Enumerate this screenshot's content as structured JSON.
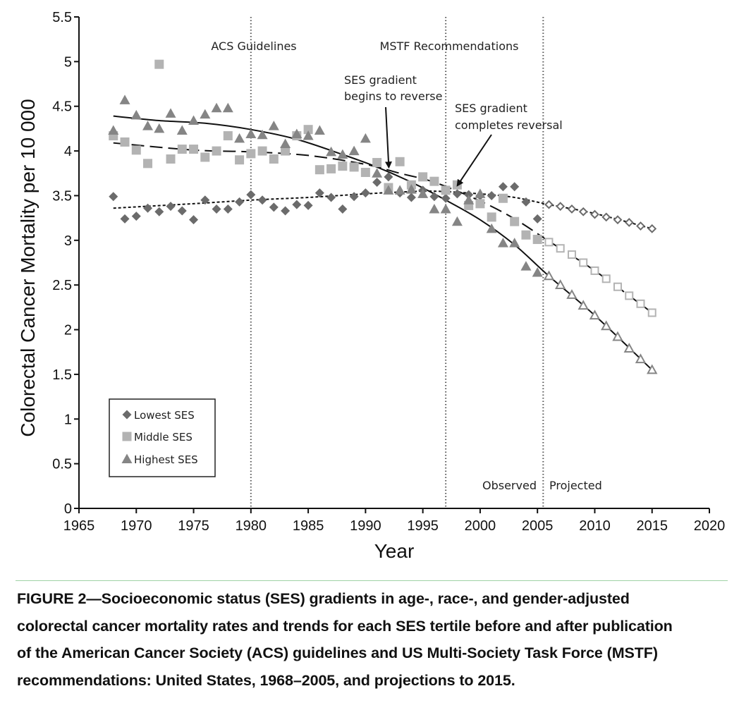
{
  "chart_data": {
    "type": "scatter",
    "xlabel": "Year",
    "ylabel": "Colorectal Cancer Mortality per 10 000",
    "xlim": [
      1965,
      2020
    ],
    "ylim": [
      0,
      5.5
    ],
    "xticks": [
      "1965",
      "1970",
      "1975",
      "1980",
      "1985",
      "1990",
      "1995",
      "2000",
      "2005",
      "2010",
      "2015",
      "2020"
    ],
    "yticks": [
      "0",
      "0.5",
      "1",
      "1.5",
      "2",
      "2.5",
      "3",
      "3.5",
      "4",
      "4.5",
      "5",
      "5.5"
    ],
    "grid": false,
    "legend_position": "bottom-left",
    "series": [
      {
        "name": "Lowest SES",
        "marker": "diamond",
        "color": "#6b6b6b",
        "observed": {
          "x": [
            1968,
            1969,
            1970,
            1971,
            1972,
            1973,
            1974,
            1975,
            1976,
            1977,
            1978,
            1979,
            1980,
            1981,
            1982,
            1983,
            1984,
            1985,
            1986,
            1987,
            1988,
            1989,
            1990,
            1991,
            1992,
            1993,
            1994,
            1995,
            1996,
            1997,
            1998,
            1999,
            2000,
            2001,
            2002,
            2003,
            2004,
            2005
          ],
          "y": [
            3.49,
            3.24,
            3.27,
            3.36,
            3.32,
            3.38,
            3.33,
            3.23,
            3.45,
            3.35,
            3.35,
            3.43,
            3.51,
            3.45,
            3.37,
            3.33,
            3.4,
            3.39,
            3.53,
            3.48,
            3.35,
            3.49,
            3.53,
            3.65,
            3.71,
            3.53,
            3.48,
            3.56,
            3.49,
            3.47,
            3.52,
            3.51,
            3.5,
            3.5,
            3.6,
            3.6,
            3.43,
            3.24
          ]
        },
        "projected": {
          "x": [
            2006,
            2007,
            2008,
            2009,
            2010,
            2011,
            2012,
            2013,
            2014,
            2015
          ],
          "y": [
            3.4,
            3.38,
            3.35,
            3.32,
            3.29,
            3.26,
            3.23,
            3.2,
            3.16,
            3.13
          ]
        },
        "trend": {
          "style": "dotted",
          "x": [
            1968,
            1975,
            1980,
            1985,
            1990,
            1993,
            1996,
            2000,
            2003,
            2006,
            2010,
            2015
          ],
          "y": [
            3.36,
            3.41,
            3.45,
            3.48,
            3.52,
            3.54,
            3.55,
            3.52,
            3.48,
            3.4,
            3.3,
            3.13
          ]
        }
      },
      {
        "name": "Middle SES",
        "marker": "square",
        "color": "#b3b3b3",
        "observed": {
          "x": [
            1968,
            1969,
            1970,
            1971,
            1972,
            1973,
            1974,
            1975,
            1976,
            1977,
            1978,
            1979,
            1980,
            1981,
            1982,
            1983,
            1984,
            1985,
            1986,
            1987,
            1988,
            1989,
            1990,
            1991,
            1992,
            1993,
            1994,
            1995,
            1996,
            1997,
            1998,
            1999,
            2000,
            2001,
            2002,
            2003,
            2004,
            2005
          ],
          "y": [
            4.17,
            4.1,
            4.01,
            3.86,
            4.97,
            3.91,
            4.02,
            4.02,
            3.93,
            4.0,
            4.17,
            3.9,
            3.97,
            4.0,
            3.91,
            4.0,
            4.17,
            4.24,
            3.79,
            3.8,
            3.83,
            3.82,
            3.76,
            3.87,
            3.59,
            3.88,
            3.62,
            3.71,
            3.66,
            3.56,
            3.62,
            3.39,
            3.41,
            3.26,
            3.47,
            3.21,
            3.06,
            3.01
          ]
        },
        "projected": {
          "x": [
            2006,
            2007,
            2008,
            2009,
            2010,
            2011,
            2012,
            2013,
            2014,
            2015
          ],
          "y": [
            2.98,
            2.91,
            2.84,
            2.75,
            2.66,
            2.57,
            2.48,
            2.38,
            2.29,
            2.19
          ]
        },
        "trend": {
          "style": "dashed",
          "x": [
            1968,
            1975,
            1980,
            1985,
            1990,
            1993,
            1996,
            2000,
            2003,
            2006,
            2010,
            2015
          ],
          "y": [
            4.09,
            4.01,
            3.99,
            3.95,
            3.85,
            3.75,
            3.65,
            3.44,
            3.24,
            2.99,
            2.66,
            2.19
          ]
        }
      },
      {
        "name": "Highest SES",
        "marker": "triangle",
        "color": "#858585",
        "observed": {
          "x": [
            1968,
            1969,
            1970,
            1971,
            1972,
            1973,
            1974,
            1975,
            1976,
            1977,
            1978,
            1979,
            1980,
            1981,
            1982,
            1983,
            1984,
            1985,
            1986,
            1987,
            1988,
            1989,
            1990,
            1991,
            1992,
            1993,
            1994,
            1995,
            1996,
            1997,
            1998,
            1999,
            2000,
            2001,
            2002,
            2003,
            2004,
            2005
          ],
          "y": [
            4.23,
            4.57,
            4.4,
            4.28,
            4.25,
            4.42,
            4.23,
            4.34,
            4.41,
            4.48,
            4.48,
            4.14,
            4.19,
            4.18,
            4.28,
            4.08,
            4.19,
            4.17,
            4.23,
            3.99,
            3.96,
            4.0,
            4.14,
            3.75,
            3.56,
            3.56,
            3.57,
            3.52,
            3.35,
            3.35,
            3.21,
            3.45,
            3.52,
            3.13,
            2.97,
            2.97,
            2.71,
            2.64
          ]
        },
        "projected": {
          "x": [
            2006,
            2007,
            2008,
            2009,
            2010,
            2011,
            2012,
            2013,
            2014,
            2015
          ],
          "y": [
            2.6,
            2.5,
            2.39,
            2.27,
            2.16,
            2.04,
            1.92,
            1.79,
            1.67,
            1.55
          ]
        },
        "trend": {
          "style": "solid",
          "x": [
            1968,
            1972,
            1976,
            1980,
            1984,
            1988,
            1991,
            1994,
            1997,
            2000,
            2003,
            2006,
            2010,
            2015
          ],
          "y": [
            4.39,
            4.34,
            4.31,
            4.24,
            4.13,
            3.96,
            3.82,
            3.65,
            3.45,
            3.23,
            2.95,
            2.6,
            2.16,
            1.55
          ]
        }
      }
    ],
    "vertical_lines": [
      {
        "x": 1980,
        "label": "ACS Guidelines"
      },
      {
        "x": 1997,
        "label": "MSTF Recommendations"
      },
      {
        "x": 2005.5,
        "label": ""
      }
    ],
    "annotations": [
      {
        "lines": [
          "SES gradient",
          "begins to reverse"
        ],
        "arrow_to": {
          "x": 1992,
          "y": 3.77
        }
      },
      {
        "lines": [
          "SES gradient",
          "completes reversal"
        ],
        "arrow_to": {
          "x": 1999,
          "y": 3.55
        }
      },
      {
        "text": "Observed"
      },
      {
        "text": "Projected"
      }
    ]
  },
  "caption": {
    "lines": [
      "FIGURE 2—Socioeconomic status (SES) gradients in age-, race-, and gender-adjusted",
      "colorectal cancer mortality rates and trends for each SES tertile before and after publication",
      "of the American Cancer Society (ACS) guidelines and US Multi-Society Task Force (MSTF)",
      "recommendations: United States, 1968–2005, and projections to 2015."
    ]
  }
}
